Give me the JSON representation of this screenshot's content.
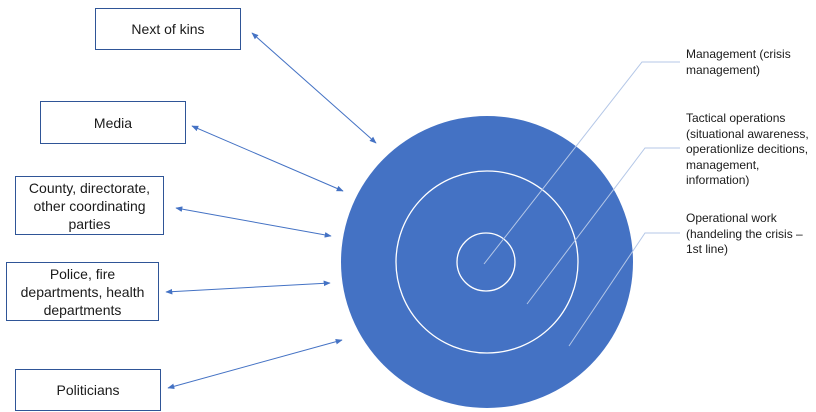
{
  "stakeholders": {
    "next_of_kins": "Next of kins",
    "media": "Media",
    "county": "County, directorate,\nother coordinating\nparties",
    "police": "Police, fire\ndepartments, health\ndepartments",
    "politicians": "Politicians"
  },
  "layers": {
    "management": "Management (crisis\nmanagement)",
    "tactical": "Tactical operations\n(situational awareness,\noperationlize decitions,\nmanagement,\ninformation)",
    "operational": "Operational work\n(handeling the crisis –\n1st line)"
  },
  "colors": {
    "circle_fill": "#4472c4",
    "box_border": "#2f5597",
    "arrow": "#4472c4",
    "leader_line": "#b4c7e7"
  }
}
